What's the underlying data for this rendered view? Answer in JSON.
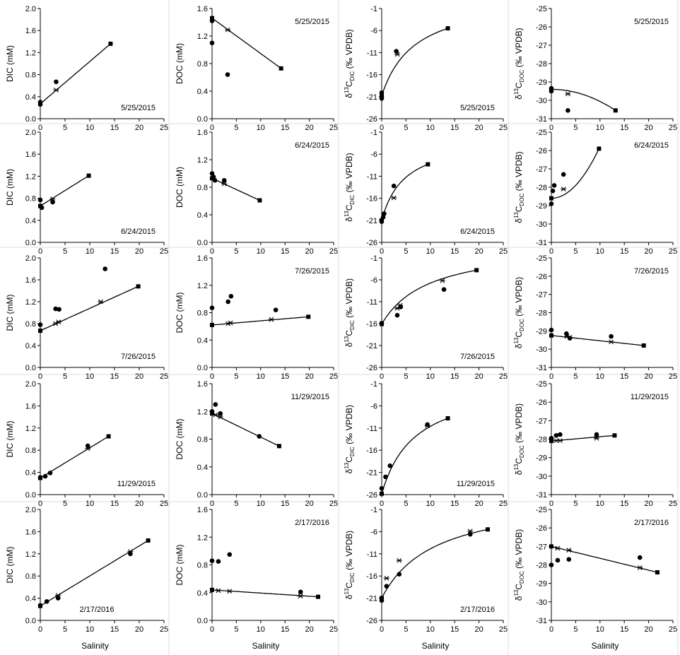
{
  "colors": {
    "line": "#000000",
    "background": "#ffffff",
    "panel_border": "#d9dee6"
  },
  "xlabel": "Salinity",
  "xlim": [
    0,
    25
  ],
  "xticks": [
    0,
    5,
    10,
    15,
    20,
    25
  ],
  "columns": [
    {
      "key": "dic",
      "ylabel": "DIC (mM)",
      "ylim": [
        0,
        2.0
      ],
      "yticks": [
        "0.0",
        "0.4",
        "0.8",
        "1.2",
        "1.6",
        "2.0"
      ]
    },
    {
      "key": "doc",
      "ylabel": "DOC (mM)",
      "ylim": [
        0,
        1.6
      ],
      "yticks": [
        "0.0",
        "0.4",
        "0.8",
        "1.2",
        "1.6"
      ]
    },
    {
      "key": "d13c_dic",
      "ylabel": "δ13CDIC (‰ VPDB)",
      "ylabel_parts": [
        "δ",
        "13",
        "C",
        "DIC",
        " (‰ VPDB)"
      ],
      "ylim": [
        -26,
        -1
      ],
      "yticks": [
        "-26",
        "-21",
        "-16",
        "-11",
        "-6",
        "-1"
      ]
    },
    {
      "key": "d13c_doc",
      "ylabel": "δ13CDOC (‰ VPDB)",
      "ylabel_parts": [
        "δ",
        "13",
        "C",
        "DOC",
        " (‰ VPDB)"
      ],
      "ylim": [
        -31,
        -25
      ],
      "yticks": [
        "-31",
        "-30",
        "-29",
        "-28",
        "-27",
        "-26",
        "-25"
      ]
    }
  ],
  "chart_data": [
    {
      "type": "scatter",
      "date": "5/25/2015",
      "variable": "DIC",
      "ylabel": "DIC (mM)",
      "label_pos": "bottom-right",
      "endmembers": [
        [
          0,
          0.27
        ],
        [
          14.2,
          1.36
        ]
      ],
      "observed": [
        [
          0,
          0.3
        ],
        [
          0,
          0.26
        ],
        [
          3.2,
          0.67
        ]
      ],
      "mixing": [
        [
          3.2,
          0.52
        ]
      ],
      "fit": {
        "kind": "linear",
        "x0": 0,
        "x1": 14.2
      }
    },
    {
      "type": "scatter",
      "date": "5/25/2015",
      "variable": "DOC",
      "ylabel": "DOC (mM)",
      "label_pos": "top-right",
      "endmembers": [
        [
          0,
          1.46
        ],
        [
          14.2,
          0.73
        ]
      ],
      "observed": [
        [
          0,
          1.42
        ],
        [
          0,
          1.1
        ],
        [
          3.2,
          0.64
        ]
      ],
      "mixing": [
        [
          3.2,
          1.29
        ]
      ],
      "fit": {
        "kind": "linear",
        "x0": 0,
        "x1": 14.2
      }
    },
    {
      "type": "scatter",
      "date": "5/25/2015",
      "variable": "δ13C-DIC",
      "label_pos": "bottom-right",
      "endmembers": [
        [
          0,
          -20.8
        ],
        [
          13.6,
          -5.5
        ]
      ],
      "observed": [
        [
          0,
          -20.1
        ],
        [
          0,
          -21.0
        ],
        [
          0,
          -21.4
        ],
        [
          3,
          -10.7
        ]
      ],
      "mixing": [
        [
          3.2,
          -11.4
        ]
      ],
      "fit": {
        "kind": "dic_mix",
        "x0": 0,
        "x1": 13.6
      }
    },
    {
      "type": "scatter",
      "date": "5/25/2015",
      "variable": "δ13C-DOC",
      "label_pos": "top-right",
      "endmembers": [
        [
          0,
          -29.4
        ],
        [
          13.2,
          -30.55
        ]
      ],
      "observed": [
        [
          0,
          -29.5
        ],
        [
          0,
          -29.35
        ],
        [
          3.4,
          -30.55
        ]
      ],
      "mixing": [
        [
          3.4,
          -29.65
        ]
      ],
      "fit": {
        "kind": "curve",
        "x0": 0,
        "x1": 13.2
      }
    },
    {
      "type": "scatter",
      "date": "6/24/2015",
      "variable": "DIC",
      "label_pos": "bottom-right",
      "endmembers": [
        [
          0,
          0.66
        ],
        [
          9.8,
          1.21
        ]
      ],
      "observed": [
        [
          0,
          0.77
        ],
        [
          0.3,
          0.63
        ],
        [
          2.5,
          0.73
        ]
      ],
      "mixing": [
        [
          2.5,
          0.79
        ]
      ],
      "fit": {
        "kind": "linear",
        "x0": 0,
        "x1": 9.8
      }
    },
    {
      "type": "scatter",
      "date": "6/24/2015",
      "variable": "DOC",
      "label_pos": "top-right",
      "endmembers": [
        [
          0,
          0.93
        ],
        [
          9.8,
          0.61
        ]
      ],
      "observed": [
        [
          0,
          1.0
        ],
        [
          0.3,
          0.95
        ],
        [
          0.6,
          0.9
        ],
        [
          2.5,
          0.9
        ]
      ],
      "mixing": [
        [
          2.5,
          0.85
        ]
      ],
      "fit": {
        "kind": "linear",
        "x0": 0,
        "x1": 9.8
      }
    },
    {
      "type": "scatter",
      "date": "6/24/2015",
      "variable": "δ13C-DIC",
      "label_pos": "bottom-right",
      "endmembers": [
        [
          0,
          -21.0
        ],
        [
          9.5,
          -8.3
        ]
      ],
      "observed": [
        [
          0,
          -21.3
        ],
        [
          0.3,
          -20.3
        ],
        [
          0.5,
          -19.5
        ],
        [
          2.5,
          -13.2
        ]
      ],
      "mixing": [
        [
          2.5,
          -15.9
        ]
      ],
      "fit": {
        "kind": "dic_mix",
        "x0": 0,
        "x1": 9.5
      }
    },
    {
      "type": "scatter",
      "date": "6/24/2015",
      "variable": "δ13C-DOC",
      "label_pos": "top-right",
      "endmembers": [
        [
          0,
          -28.6
        ],
        [
          9.8,
          -25.9
        ]
      ],
      "observed": [
        [
          0,
          -28.9
        ],
        [
          0.3,
          -28.2
        ],
        [
          0.6,
          -27.9
        ],
        [
          2.5,
          -27.3
        ]
      ],
      "mixing": [
        [
          2.5,
          -28.1
        ]
      ],
      "fit": {
        "kind": "curve",
        "x0": 0,
        "x1": 9.8
      }
    },
    {
      "type": "scatter",
      "date": "7/26/2015",
      "variable": "DIC",
      "label_pos": "bottom-right",
      "endmembers": [
        [
          0,
          0.67
        ],
        [
          19.8,
          1.48
        ]
      ],
      "observed": [
        [
          0,
          0.78
        ],
        [
          3.1,
          1.07
        ],
        [
          3.8,
          1.06
        ],
        [
          13.1,
          1.8
        ]
      ],
      "mixing": [
        [
          3.1,
          0.8
        ],
        [
          3.7,
          0.83
        ],
        [
          12.2,
          1.2
        ]
      ],
      "fit": {
        "kind": "linear",
        "x0": 0,
        "x1": 19.8
      }
    },
    {
      "type": "scatter",
      "date": "7/26/2015",
      "variable": "DOC",
      "label_pos": "top-right",
      "endmembers": [
        [
          0,
          0.62
        ],
        [
          19.8,
          0.74
        ]
      ],
      "observed": [
        [
          0,
          0.87
        ],
        [
          3.3,
          0.96
        ],
        [
          3.9,
          1.04
        ],
        [
          13.1,
          0.84
        ]
      ],
      "mixing": [
        [
          3.3,
          0.64
        ],
        [
          3.8,
          0.65
        ],
        [
          12.2,
          0.7
        ]
      ],
      "fit": {
        "kind": "linear",
        "x0": 0,
        "x1": 19.8
      }
    },
    {
      "type": "scatter",
      "date": "7/26/2015",
      "variable": "δ13C-DIC",
      "label_pos": "bottom-right",
      "endmembers": [
        [
          0,
          -16.1
        ],
        [
          19.5,
          -3.8
        ]
      ],
      "observed": [
        [
          0,
          -15.9
        ],
        [
          3.2,
          -14.1
        ],
        [
          3.9,
          -12.2
        ],
        [
          12.8,
          -8.2
        ]
      ],
      "mixing": [
        [
          3.2,
          -12.5
        ],
        [
          3.8,
          -11.8
        ],
        [
          12.5,
          -6.2
        ]
      ],
      "fit": {
        "kind": "dic_mix",
        "x0": 0,
        "x1": 19.5
      }
    },
    {
      "type": "scatter",
      "date": "7/26/2015",
      "variable": "δ13C-DOC",
      "label_pos": "top-right",
      "endmembers": [
        [
          0,
          -29.25
        ],
        [
          19.0,
          -29.8
        ]
      ],
      "observed": [
        [
          0,
          -28.95
        ],
        [
          3.1,
          -29.15
        ],
        [
          3.8,
          -29.4
        ],
        [
          12.3,
          -29.3
        ]
      ],
      "mixing": [
        [
          3.2,
          -29.3
        ],
        [
          3.8,
          -29.35
        ],
        [
          12.3,
          -29.6
        ]
      ],
      "fit": {
        "kind": "linear",
        "x0": 0,
        "x1": 19.0
      }
    },
    {
      "type": "scatter",
      "date": "11/29/2015",
      "variable": "DIC",
      "label_pos": "bottom-right",
      "endmembers": [
        [
          0,
          0.3
        ],
        [
          13.8,
          1.05
        ]
      ],
      "observed": [
        [
          0,
          0.31
        ],
        [
          1,
          0.33
        ],
        [
          2,
          0.39
        ],
        [
          9.6,
          0.88
        ]
      ],
      "mixing": [
        [
          9.6,
          0.83
        ]
      ],
      "fit": {
        "kind": "linear",
        "x0": 0,
        "x1": 13.8
      }
    },
    {
      "type": "scatter",
      "date": "11/29/2015",
      "variable": "DOC",
      "label_pos": "top-right",
      "endmembers": [
        [
          0,
          1.17
        ],
        [
          13.8,
          0.7
        ]
      ],
      "observed": [
        [
          0,
          1.2
        ],
        [
          0.7,
          1.3
        ],
        [
          1.7,
          1.17
        ],
        [
          9.7,
          0.84
        ]
      ],
      "mixing": [
        [
          0.7,
          1.15
        ],
        [
          1.7,
          1.12
        ]
      ],
      "fit": {
        "kind": "linear",
        "x0": 0,
        "x1": 13.8
      }
    },
    {
      "type": "scatter",
      "date": "11/29/2015",
      "variable": "δ13C-DIC",
      "label_pos": "bottom-right",
      "endmembers": [
        [
          0,
          -25.8
        ],
        [
          13.6,
          -8.8
        ]
      ],
      "observed": [
        [
          0,
          -24.6
        ],
        [
          0.8,
          -22.0
        ],
        [
          1.7,
          -19.5
        ],
        [
          9.4,
          -10.2
        ]
      ],
      "mixing": [
        [
          9.4,
          -10.5
        ]
      ],
      "fit": {
        "kind": "dic_mix",
        "x0": 0,
        "x1": 13.6
      }
    },
    {
      "type": "scatter",
      "date": "11/29/2015",
      "variable": "δ13C-DOC",
      "label_pos": "top-right",
      "endmembers": [
        [
          0,
          -28.1
        ],
        [
          13.0,
          -27.8
        ]
      ],
      "observed": [
        [
          0,
          -28.0
        ],
        [
          0,
          -27.95
        ],
        [
          1,
          -27.8
        ],
        [
          1.8,
          -27.75
        ],
        [
          9.3,
          -27.75
        ]
      ],
      "mixing": [
        [
          1,
          -28.08
        ],
        [
          1.8,
          -28.08
        ],
        [
          9.3,
          -27.95
        ]
      ],
      "fit": {
        "kind": "linear",
        "x0": 0,
        "x1": 13.0
      }
    },
    {
      "type": "scatter",
      "date": "2/17/2016",
      "variable": "DIC",
      "label_pos": "bottom-left",
      "endmembers": [
        [
          0,
          0.26
        ],
        [
          21.8,
          1.44
        ]
      ],
      "observed": [
        [
          0,
          0.27
        ],
        [
          1.3,
          0.34
        ],
        [
          3.6,
          0.4
        ],
        [
          18.2,
          1.2
        ]
      ],
      "mixing": [
        [
          3.6,
          0.45
        ],
        [
          18.2,
          1.24
        ]
      ],
      "fit": {
        "kind": "linear",
        "x0": 0,
        "x1": 21.8
      }
    },
    {
      "type": "scatter",
      "date": "2/17/2016",
      "variable": "DOC",
      "label_pos": "top-right",
      "endmembers": [
        [
          0,
          0.44
        ],
        [
          21.8,
          0.34
        ]
      ],
      "observed": [
        [
          0,
          0.86
        ],
        [
          1.3,
          0.85
        ],
        [
          3.6,
          0.95
        ],
        [
          18.2,
          0.41
        ]
      ],
      "mixing": [
        [
          1.3,
          0.43
        ],
        [
          3.6,
          0.42
        ],
        [
          18.2,
          0.35
        ]
      ],
      "fit": {
        "kind": "linear",
        "x0": 0,
        "x1": 21.8
      }
    },
    {
      "type": "scatter",
      "date": "2/17/2016",
      "variable": "δ13C-DIC",
      "label_pos": "bottom-right",
      "endmembers": [
        [
          0,
          -21.0
        ],
        [
          21.8,
          -5.5
        ]
      ],
      "observed": [
        [
          0,
          -21.5
        ],
        [
          1,
          -18.3
        ],
        [
          3.6,
          -15.6
        ],
        [
          18.2,
          -6.6
        ]
      ],
      "mixing": [
        [
          1,
          -16.5
        ],
        [
          3.6,
          -12.5
        ],
        [
          18.2,
          -5.9
        ]
      ],
      "fit": {
        "kind": "dic_mix",
        "x0": 0,
        "x1": 21.8
      }
    },
    {
      "type": "scatter",
      "date": "2/17/2016",
      "variable": "δ13C-DOC",
      "label_pos": "top-right",
      "endmembers": [
        [
          0,
          -27.0
        ],
        [
          21.8,
          -28.4
        ]
      ],
      "observed": [
        [
          0,
          -28.0
        ],
        [
          1.3,
          -27.75
        ],
        [
          3.6,
          -27.7
        ],
        [
          18.2,
          -27.6
        ]
      ],
      "mixing": [
        [
          1.3,
          -27.1
        ],
        [
          3.6,
          -27.2
        ],
        [
          18.2,
          -28.15
        ]
      ],
      "fit": {
        "kind": "linear",
        "x0": 0,
        "x1": 21.8
      }
    }
  ]
}
